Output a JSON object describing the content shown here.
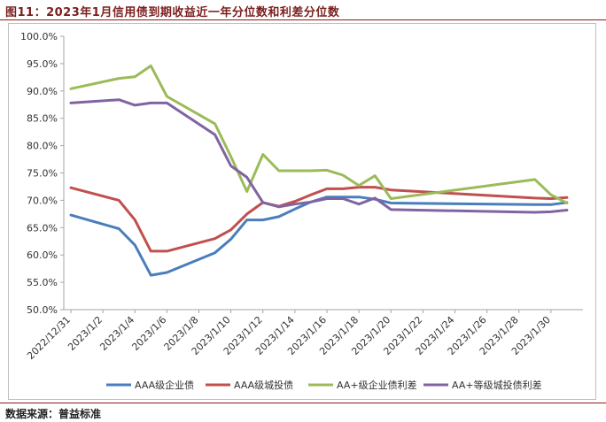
{
  "figure": {
    "title": "图11：2023年1月信用债到期收益近一年分位数和利差分位数",
    "source": "数据来源：普益标准"
  },
  "chart_data": {
    "type": "line",
    "x_ticks": [
      "2022/12/31",
      "2023/1/2",
      "2023/1/4",
      "2023/1/6",
      "2023/1/8",
      "2023/1/10",
      "2023/1/12",
      "2023/1/14",
      "2023/1/16",
      "2023/1/18",
      "2023/1/20",
      "2023/1/22",
      "2023/1/24",
      "2023/1/26",
      "2023/1/28",
      "2023/1/30"
    ],
    "x": [
      "2022/12/31",
      "2023/1/3",
      "2023/1/4",
      "2023/1/5",
      "2023/1/6",
      "2023/1/9",
      "2023/1/10",
      "2023/1/11",
      "2023/1/12",
      "2023/1/13",
      "2023/1/14",
      "2023/1/15",
      "2023/1/16",
      "2023/1/17",
      "2023/1/18",
      "2023/1/19",
      "2023/1/20",
      "2023/1/29",
      "2023/1/30",
      "2023/1/31"
    ],
    "ylim": [
      50,
      100
    ],
    "y_ticks": [
      "50.0%",
      "55.0%",
      "60.0%",
      "65.0%",
      "70.0%",
      "75.0%",
      "80.0%",
      "85.0%",
      "90.0%",
      "95.0%",
      "100.0%"
    ],
    "y_tick_values": [
      50,
      55,
      60,
      65,
      70,
      75,
      80,
      85,
      90,
      95,
      100
    ],
    "legend_position": "bottom",
    "grid": false,
    "series": [
      {
        "name": "AAA级企业债",
        "color": "#4a7ebb",
        "values": [
          67.3,
          64.8,
          61.8,
          56.3,
          56.8,
          60.4,
          62.9,
          66.4,
          66.4,
          67.0,
          68.4,
          69.7,
          70.6,
          70.6,
          70.6,
          70.2,
          69.5,
          69.2,
          69.2,
          69.6
        ]
      },
      {
        "name": "AAA级城投债",
        "color": "#c0504d",
        "values": [
          72.3,
          70.0,
          66.4,
          60.7,
          60.7,
          63.0,
          64.6,
          67.5,
          69.6,
          68.9,
          69.8,
          71.0,
          72.1,
          72.1,
          72.4,
          72.4,
          71.9,
          70.4,
          70.3,
          70.5
        ]
      },
      {
        "name": "AA+级企业债利差",
        "color": "#9bbb59",
        "values": [
          90.4,
          92.3,
          92.6,
          94.6,
          89.0,
          84.0,
          78.0,
          71.6,
          78.4,
          75.4,
          75.4,
          75.4,
          75.5,
          74.6,
          72.7,
          74.5,
          70.3,
          73.8,
          71.0,
          69.5
        ]
      },
      {
        "name": "AA+等级城投债利差",
        "color": "#8064a2",
        "values": [
          87.8,
          88.4,
          87.4,
          87.8,
          87.8,
          82.0,
          76.3,
          74.2,
          69.6,
          68.8,
          69.3,
          69.7,
          70.3,
          70.3,
          69.3,
          70.4,
          68.3,
          67.8,
          67.9,
          68.2
        ]
      }
    ]
  }
}
